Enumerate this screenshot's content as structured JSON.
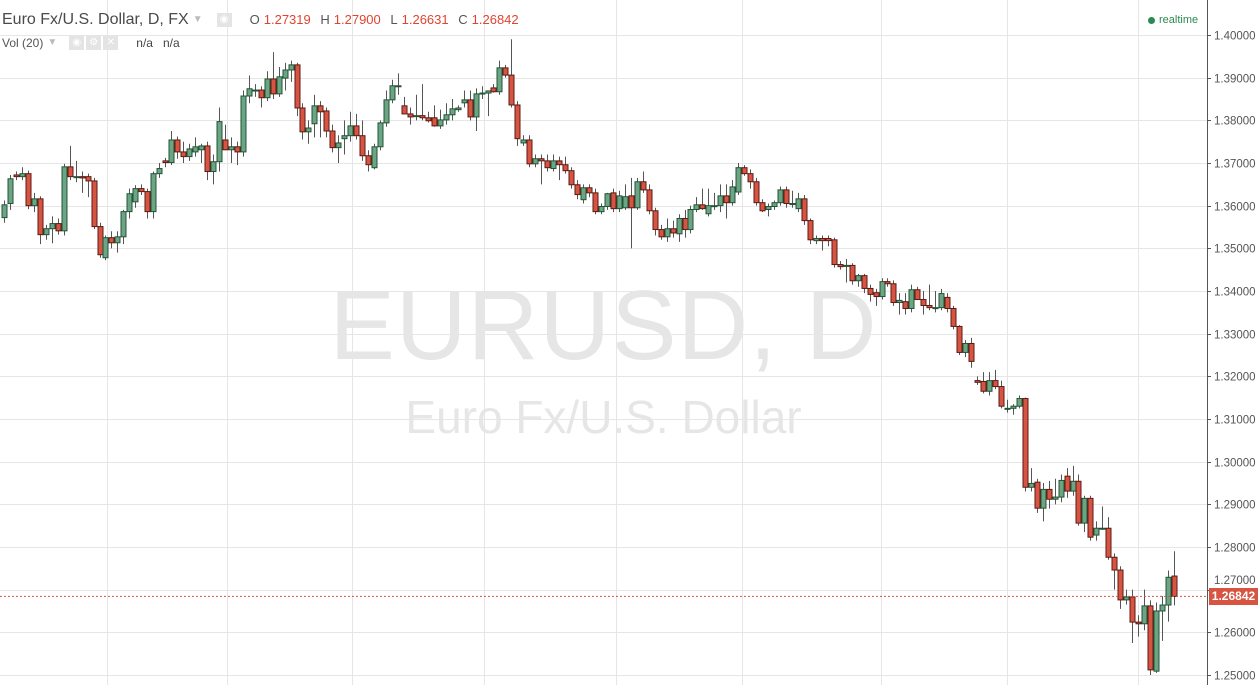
{
  "header": {
    "title": "Euro Fx/U.S. Dollar, D, FX",
    "o_label": "O",
    "o": "1.27319",
    "h_label": "H",
    "h": "1.27900",
    "l_label": "L",
    "l": "1.26631",
    "c_label": "C",
    "c": "1.26842"
  },
  "volume": {
    "label": "Vol (20)",
    "v1": "n/a",
    "v2": "n/a"
  },
  "status": {
    "realtime": "realtime"
  },
  "watermark": {
    "symbol": "EURUSD, D",
    "description": "Euro Fx/U.S. Dollar"
  },
  "price_label": "1.26842",
  "colors": {
    "up": "#6ba583",
    "up_border": "#225437",
    "down": "#d75442",
    "down_border": "#5b1a13",
    "realtime": "#2b8a4f",
    "last_price_line": "#d75442"
  },
  "chart_data": {
    "type": "candlestick",
    "symbol": "EURUSD",
    "interval": "D",
    "ylim": [
      1.25,
      1.4
    ],
    "grid": true,
    "y_ticks": [
      "1.25000",
      "1.26000",
      "1.27000",
      "1.28000",
      "1.29000",
      "1.30000",
      "1.31000",
      "1.32000",
      "1.33000",
      "1.34000",
      "1.35000",
      "1.36000",
      "1.37000",
      "1.38000",
      "1.39000",
      "1.40000"
    ],
    "last_price": 1.26842,
    "candles_ohlc": [
      [
        1.3572,
        1.3612,
        1.356,
        1.3602
      ],
      [
        1.3605,
        1.3672,
        1.359,
        1.3663
      ],
      [
        1.3672,
        1.368,
        1.366,
        1.3668
      ],
      [
        1.3668,
        1.369,
        1.366,
        1.3675
      ],
      [
        1.3675,
        1.3682,
        1.3592,
        1.36
      ],
      [
        1.36,
        1.363,
        1.3585,
        1.3616
      ],
      [
        1.3616,
        1.3622,
        1.351,
        1.3532
      ],
      [
        1.3532,
        1.3555,
        1.352,
        1.3546
      ],
      [
        1.3546,
        1.3575,
        1.3512,
        1.3558
      ],
      [
        1.3558,
        1.357,
        1.3532,
        1.3541
      ],
      [
        1.3541,
        1.3698,
        1.353,
        1.3691
      ],
      [
        1.3691,
        1.374,
        1.366,
        1.3668
      ],
      [
        1.3668,
        1.3705,
        1.3655,
        1.3668
      ],
      [
        1.3668,
        1.368,
        1.363,
        1.3665
      ],
      [
        1.3668,
        1.3675,
        1.362,
        1.3658
      ],
      [
        1.3658,
        1.3665,
        1.3545,
        1.3551
      ],
      [
        1.3551,
        1.356,
        1.3478,
        1.3485
      ],
      [
        1.3478,
        1.353,
        1.3472,
        1.3525
      ],
      [
        1.3525,
        1.354,
        1.35,
        1.3513
      ],
      [
        1.3513,
        1.354,
        1.349,
        1.3527
      ],
      [
        1.3527,
        1.359,
        1.351,
        1.3586
      ],
      [
        1.3586,
        1.364,
        1.357,
        1.3628
      ],
      [
        1.3609,
        1.3648,
        1.3595,
        1.364
      ],
      [
        1.364,
        1.365,
        1.3625,
        1.3633
      ],
      [
        1.3633,
        1.364,
        1.357,
        1.3586
      ],
      [
        1.3586,
        1.368,
        1.357,
        1.3675
      ],
      [
        1.3675,
        1.37,
        1.3665,
        1.3687
      ],
      [
        1.3705,
        1.3712,
        1.369,
        1.3701
      ],
      [
        1.3701,
        1.3775,
        1.3695,
        1.3754
      ],
      [
        1.3754,
        1.3762,
        1.371,
        1.3726
      ],
      [
        1.3726,
        1.375,
        1.37,
        1.3715
      ],
      [
        1.3715,
        1.3745,
        1.3705,
        1.3733
      ],
      [
        1.3726,
        1.376,
        1.3715,
        1.3738
      ],
      [
        1.3731,
        1.3745,
        1.37,
        1.374
      ],
      [
        1.374,
        1.375,
        1.366,
        1.368
      ],
      [
        1.368,
        1.372,
        1.365,
        1.3703
      ],
      [
        1.3703,
        1.383,
        1.368,
        1.3797
      ],
      [
        1.3754,
        1.379,
        1.373,
        1.3731
      ],
      [
        1.3731,
        1.376,
        1.37,
        1.3738
      ],
      [
        1.3738,
        1.375,
        1.3695,
        1.3726
      ],
      [
        1.3726,
        1.387,
        1.3715,
        1.3857
      ],
      [
        1.3857,
        1.3905,
        1.384,
        1.3874
      ],
      [
        1.3871,
        1.3885,
        1.3855,
        1.3871
      ],
      [
        1.3871,
        1.388,
        1.383,
        1.3853
      ],
      [
        1.3853,
        1.3915,
        1.3845,
        1.3897
      ],
      [
        1.3897,
        1.396,
        1.385,
        1.3862
      ],
      [
        1.3862,
        1.3925,
        1.3855,
        1.3902
      ],
      [
        1.3899,
        1.3935,
        1.387,
        1.3918
      ],
      [
        1.3918,
        1.394,
        1.389,
        1.393
      ],
      [
        1.393,
        1.3935,
        1.381,
        1.3829
      ],
      [
        1.3829,
        1.384,
        1.3755,
        1.3773
      ],
      [
        1.3773,
        1.38,
        1.3745,
        1.3782
      ],
      [
        1.3792,
        1.386,
        1.376,
        1.3834
      ],
      [
        1.3834,
        1.3845,
        1.376,
        1.382
      ],
      [
        1.3822,
        1.383,
        1.376,
        1.3775
      ],
      [
        1.3775,
        1.379,
        1.3725,
        1.3736
      ],
      [
        1.3736,
        1.3765,
        1.37,
        1.3747
      ],
      [
        1.3757,
        1.38,
        1.372,
        1.3764
      ],
      [
        1.3764,
        1.382,
        1.375,
        1.3787
      ],
      [
        1.3787,
        1.3815,
        1.3755,
        1.3764
      ],
      [
        1.3764,
        1.38,
        1.3705,
        1.3717
      ],
      [
        1.3717,
        1.373,
        1.368,
        1.3696
      ],
      [
        1.3689,
        1.3745,
        1.3685,
        1.3738
      ],
      [
        1.3738,
        1.38,
        1.373,
        1.3794
      ],
      [
        1.3794,
        1.387,
        1.3785,
        1.3848
      ],
      [
        1.3848,
        1.3895,
        1.384,
        1.3881
      ],
      [
        1.3881,
        1.391,
        1.386,
        1.3881
      ],
      [
        1.3834,
        1.3855,
        1.3815,
        1.3815
      ],
      [
        1.3815,
        1.383,
        1.379,
        1.3808
      ],
      [
        1.3811,
        1.386,
        1.38,
        1.3811
      ],
      [
        1.3811,
        1.3885,
        1.38,
        1.3806
      ],
      [
        1.3806,
        1.382,
        1.3795,
        1.3799
      ],
      [
        1.3806,
        1.3835,
        1.3785,
        1.3787
      ],
      [
        1.3787,
        1.3825,
        1.378,
        1.3801
      ],
      [
        1.3801,
        1.384,
        1.379,
        1.3813
      ],
      [
        1.3813,
        1.385,
        1.38,
        1.3827
      ],
      [
        1.3825,
        1.3835,
        1.382,
        1.3829
      ],
      [
        1.3841,
        1.387,
        1.383,
        1.3848
      ],
      [
        1.3848,
        1.387,
        1.38,
        1.3808
      ],
      [
        1.3808,
        1.3875,
        1.3775,
        1.3862
      ],
      [
        1.3862,
        1.388,
        1.385,
        1.3864
      ],
      [
        1.3864,
        1.387,
        1.381,
        1.3869
      ],
      [
        1.3876,
        1.3885,
        1.3865,
        1.3867
      ],
      [
        1.3867,
        1.394,
        1.386,
        1.3923
      ],
      [
        1.3923,
        1.393,
        1.39,
        1.3906
      ],
      [
        1.3906,
        1.399,
        1.383,
        1.3836
      ],
      [
        1.3836,
        1.3845,
        1.374,
        1.3757
      ],
      [
        1.3747,
        1.3765,
        1.374,
        1.3754
      ],
      [
        1.3754,
        1.3765,
        1.369,
        1.3698
      ],
      [
        1.3698,
        1.372,
        1.369,
        1.371
      ],
      [
        1.371,
        1.372,
        1.365,
        1.3705
      ],
      [
        1.3705,
        1.372,
        1.368,
        1.3689
      ],
      [
        1.3687,
        1.372,
        1.368,
        1.3705
      ],
      [
        1.3705,
        1.3715,
        1.366,
        1.3696
      ],
      [
        1.3696,
        1.3715,
        1.3675,
        1.3682
      ],
      [
        1.3682,
        1.369,
        1.364,
        1.3649
      ],
      [
        1.3649,
        1.366,
        1.3615,
        1.3626
      ],
      [
        1.3614,
        1.365,
        1.3605,
        1.3642
      ],
      [
        1.3642,
        1.365,
        1.362,
        1.363
      ],
      [
        1.363,
        1.364,
        1.358,
        1.3586
      ],
      [
        1.3586,
        1.3605,
        1.358,
        1.3598
      ],
      [
        1.3598,
        1.363,
        1.359,
        1.3628
      ],
      [
        1.363,
        1.364,
        1.3585,
        1.3593
      ],
      [
        1.3593,
        1.3635,
        1.3585,
        1.3623
      ],
      [
        1.3595,
        1.365,
        1.359,
        1.3621
      ],
      [
        1.3623,
        1.3665,
        1.35,
        1.3595
      ],
      [
        1.3595,
        1.3665,
        1.359,
        1.3656
      ],
      [
        1.3656,
        1.368,
        1.363,
        1.3637
      ],
      [
        1.3637,
        1.365,
        1.358,
        1.3588
      ],
      [
        1.3588,
        1.3595,
        1.353,
        1.3544
      ],
      [
        1.3544,
        1.3555,
        1.352,
        1.3527
      ],
      [
        1.3527,
        1.357,
        1.3515,
        1.3546
      ],
      [
        1.3546,
        1.3565,
        1.3525,
        1.3536
      ],
      [
        1.3534,
        1.358,
        1.3515,
        1.357
      ],
      [
        1.357,
        1.359,
        1.3525,
        1.3544
      ],
      [
        1.3544,
        1.36,
        1.3535,
        1.3591
      ],
      [
        1.3591,
        1.362,
        1.3585,
        1.3602
      ],
      [
        1.3602,
        1.364,
        1.359,
        1.3593
      ],
      [
        1.3581,
        1.364,
        1.3575,
        1.36
      ],
      [
        1.36,
        1.363,
        1.359,
        1.36
      ],
      [
        1.36,
        1.365,
        1.3585,
        1.3623
      ],
      [
        1.3623,
        1.365,
        1.357,
        1.3607
      ],
      [
        1.3607,
        1.366,
        1.36,
        1.3644
      ],
      [
        1.3632,
        1.37,
        1.3625,
        1.3689
      ],
      [
        1.3689,
        1.3695,
        1.367,
        1.3675
      ],
      [
        1.3675,
        1.3685,
        1.364,
        1.3656
      ],
      [
        1.3656,
        1.3665,
        1.36,
        1.3607
      ],
      [
        1.3607,
        1.3615,
        1.3585,
        1.3588
      ],
      [
        1.3591,
        1.3605,
        1.3575,
        1.3598
      ],
      [
        1.3598,
        1.3612,
        1.359,
        1.3607
      ],
      [
        1.3607,
        1.3645,
        1.36,
        1.3637
      ],
      [
        1.3637,
        1.3645,
        1.3595,
        1.3605
      ],
      [
        1.3605,
        1.3635,
        1.3595,
        1.3605
      ],
      [
        1.3593,
        1.363,
        1.3585,
        1.3616
      ],
      [
        1.3616,
        1.3625,
        1.3555,
        1.3565
      ],
      [
        1.3565,
        1.357,
        1.351,
        1.352
      ],
      [
        1.3518,
        1.353,
        1.351,
        1.3523
      ],
      [
        1.3523,
        1.353,
        1.3495,
        1.3518
      ],
      [
        1.3523,
        1.353,
        1.3505,
        1.3518
      ],
      [
        1.352,
        1.3525,
        1.3455,
        1.3462
      ],
      [
        1.3462,
        1.347,
        1.345,
        1.3457
      ],
      [
        1.346,
        1.3475,
        1.342,
        1.346
      ],
      [
        1.346,
        1.3465,
        1.3415,
        1.3424
      ],
      [
        1.3424,
        1.344,
        1.341,
        1.3436
      ],
      [
        1.3436,
        1.344,
        1.3395,
        1.3406
      ],
      [
        1.3406,
        1.3415,
        1.3375,
        1.3392
      ],
      [
        1.3396,
        1.3405,
        1.3365,
        1.3387
      ],
      [
        1.3387,
        1.343,
        1.338,
        1.3422
      ],
      [
        1.3422,
        1.343,
        1.341,
        1.3417
      ],
      [
        1.3417,
        1.3425,
        1.3365,
        1.3373
      ],
      [
        1.3373,
        1.3395,
        1.3345,
        1.3378
      ],
      [
        1.3375,
        1.3395,
        1.3345,
        1.3359
      ],
      [
        1.3359,
        1.3415,
        1.335,
        1.3403
      ],
      [
        1.3403,
        1.341,
        1.338,
        1.338
      ],
      [
        1.338,
        1.34,
        1.3345,
        1.3366
      ],
      [
        1.3366,
        1.3415,
        1.3355,
        1.3361
      ],
      [
        1.3361,
        1.34,
        1.335,
        1.3361
      ],
      [
        1.3361,
        1.3405,
        1.3355,
        1.3394
      ],
      [
        1.3385,
        1.3395,
        1.335,
        1.3359
      ],
      [
        1.3359,
        1.3365,
        1.331,
        1.3317
      ],
      [
        1.3317,
        1.332,
        1.325,
        1.3256
      ],
      [
        1.3256,
        1.3285,
        1.3245,
        1.3277
      ],
      [
        1.3277,
        1.329,
        1.322,
        1.3235
      ],
      [
        1.319,
        1.32,
        1.318,
        1.3186
      ],
      [
        1.3188,
        1.321,
        1.316,
        1.3165
      ],
      [
        1.3165,
        1.321,
        1.3155,
        1.319
      ],
      [
        1.319,
        1.3215,
        1.317,
        1.3176
      ],
      [
        1.3176,
        1.319,
        1.3125,
        1.313
      ],
      [
        1.3125,
        1.3145,
        1.3115,
        1.3125
      ],
      [
        1.3125,
        1.3135,
        1.311,
        1.313
      ],
      [
        1.313,
        1.3155,
        1.3125,
        1.3148
      ],
      [
        1.3148,
        1.315,
        1.293,
        1.294
      ],
      [
        1.294,
        1.2985,
        1.293,
        1.2949
      ],
      [
        1.2952,
        1.296,
        1.288,
        1.2891
      ],
      [
        1.2891,
        1.295,
        1.286,
        1.2935
      ],
      [
        1.2935,
        1.2955,
        1.289,
        1.2912
      ],
      [
        1.2912,
        1.296,
        1.29,
        1.2917
      ],
      [
        1.2917,
        1.297,
        1.2905,
        1.2956
      ],
      [
        1.2966,
        1.2985,
        1.2915,
        1.2931
      ],
      [
        1.2931,
        1.299,
        1.292,
        1.2954
      ],
      [
        1.2954,
        1.297,
        1.285,
        1.2856
      ],
      [
        1.2856,
        1.292,
        1.2835,
        1.2914
      ],
      [
        1.2914,
        1.292,
        1.2815,
        1.2823
      ],
      [
        1.2828,
        1.286,
        1.2815,
        1.2844
      ],
      [
        1.2844,
        1.2895,
        1.284,
        1.2844
      ],
      [
        1.2844,
        1.287,
        1.277,
        1.2776
      ],
      [
        1.2776,
        1.2785,
        1.27,
        1.2746
      ],
      [
        1.2746,
        1.2755,
        1.2655,
        1.2676
      ],
      [
        1.2676,
        1.27,
        1.2665,
        1.2683
      ],
      [
        1.2683,
        1.27,
        1.2575,
        1.2624
      ],
      [
        1.2624,
        1.264,
        1.259,
        1.262
      ],
      [
        1.262,
        1.27,
        1.2605,
        1.2662
      ],
      [
        1.2662,
        1.2675,
        1.25,
        1.2512
      ],
      [
        1.2509,
        1.267,
        1.2505,
        1.265
      ],
      [
        1.265,
        1.2685,
        1.258,
        1.2664
      ],
      [
        1.2664,
        1.2745,
        1.2625,
        1.2729
      ],
      [
        1.27319,
        1.279,
        1.26631,
        1.26842
      ]
    ]
  }
}
